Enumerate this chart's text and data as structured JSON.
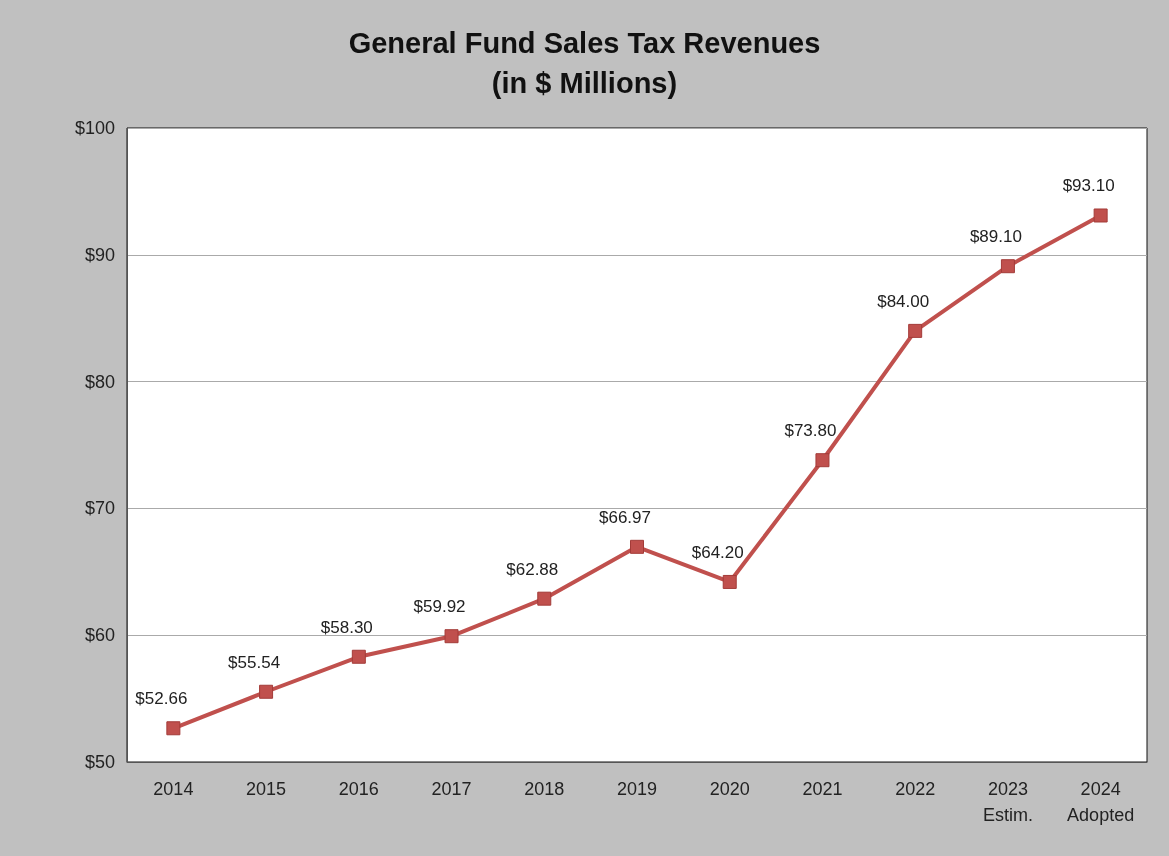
{
  "chart_data": {
    "type": "line",
    "title": "General Fund Sales Tax Revenues\n(in $ Millions)",
    "categories": [
      "2014",
      "2015",
      "2016",
      "2017",
      "2018",
      "2019",
      "2020",
      "2021",
      "2022",
      "2023\nEstim.",
      "2024\nAdopted"
    ],
    "series": [
      {
        "color": "#c0504d",
        "values": [
          52.66,
          55.54,
          58.3,
          59.92,
          62.88,
          66.97,
          64.2,
          73.8,
          84.0,
          89.1,
          93.1
        ],
        "value_labels": [
          "$52.66",
          "$55.54",
          "$58.30",
          "$59.92",
          "$62.88",
          "$66.97",
          "$64.20",
          "$73.80",
          "$84.00",
          "$89.10",
          "$93.10"
        ]
      }
    ],
    "ylim": [
      50,
      100
    ],
    "yticks": [
      {
        "value": 50,
        "label": "$50"
      },
      {
        "value": 60,
        "label": "$60"
      },
      {
        "value": 70,
        "label": "$70"
      },
      {
        "value": 80,
        "label": "$80"
      },
      {
        "value": 90,
        "label": "$90"
      },
      {
        "value": 100,
        "label": "$100"
      }
    ],
    "grid": "y",
    "marker": "square",
    "line_style": "solid"
  }
}
